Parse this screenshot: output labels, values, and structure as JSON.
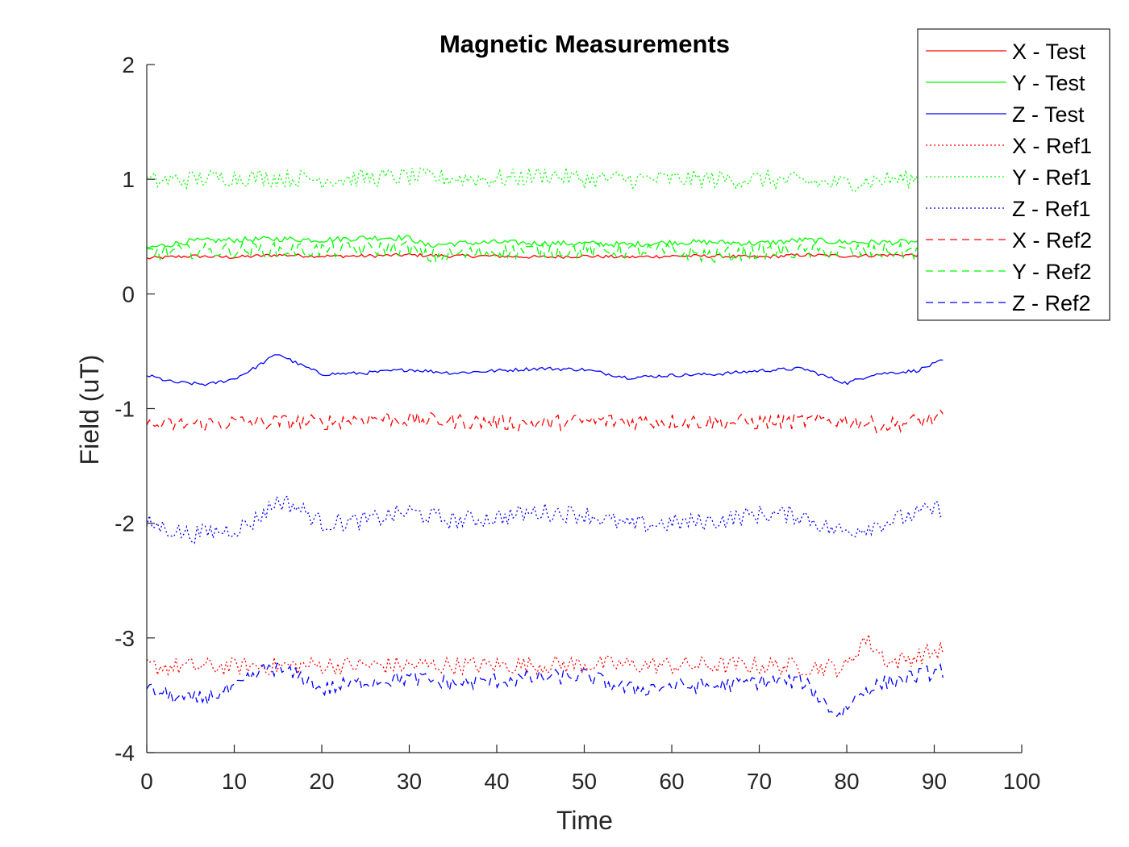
{
  "chart_data": {
    "type": "line",
    "title": "Magnetic Measurements",
    "xlabel": "Time",
    "ylabel": "Field (uT)",
    "xlim": [
      0,
      100
    ],
    "ylim": [
      -4,
      2
    ],
    "xticks": [
      0,
      10,
      20,
      30,
      40,
      50,
      60,
      70,
      80,
      90,
      100
    ],
    "yticks": [
      -4,
      -3,
      -2,
      -1,
      0,
      1,
      2
    ],
    "grid": false,
    "legend_position": "top-right",
    "x_range": [
      0,
      91
    ],
    "series": [
      {
        "name": "X - Test",
        "color": "#ff0000",
        "style": "solid",
        "x": [
          0,
          5,
          10,
          15,
          20,
          25,
          30,
          35,
          40,
          45,
          50,
          55,
          60,
          65,
          70,
          75,
          80,
          85,
          91
        ],
        "y": [
          0.31,
          0.33,
          0.32,
          0.34,
          0.33,
          0.33,
          0.34,
          0.33,
          0.33,
          0.32,
          0.33,
          0.32,
          0.33,
          0.33,
          0.32,
          0.34,
          0.33,
          0.34,
          0.34
        ]
      },
      {
        "name": "Y - Test",
        "color": "#00ff00",
        "style": "solid",
        "x": [
          0,
          5,
          10,
          15,
          20,
          25,
          30,
          32,
          35,
          40,
          45,
          50,
          55,
          60,
          65,
          70,
          75,
          80,
          85,
          91
        ],
        "y": [
          0.4,
          0.46,
          0.47,
          0.48,
          0.47,
          0.49,
          0.49,
          0.42,
          0.44,
          0.45,
          0.44,
          0.44,
          0.43,
          0.45,
          0.45,
          0.44,
          0.47,
          0.45,
          0.45,
          0.46
        ]
      },
      {
        "name": "Z - Test",
        "color": "#0000ff",
        "style": "solid",
        "x": [
          0,
          3,
          7,
          10,
          12,
          15,
          17,
          20,
          25,
          30,
          35,
          40,
          45,
          50,
          55,
          60,
          65,
          70,
          75,
          78,
          80,
          83,
          88,
          91
        ],
        "y": [
          -0.71,
          -0.77,
          -0.79,
          -0.74,
          -0.66,
          -0.52,
          -0.6,
          -0.7,
          -0.69,
          -0.66,
          -0.69,
          -0.67,
          -0.65,
          -0.66,
          -0.73,
          -0.71,
          -0.7,
          -0.67,
          -0.65,
          -0.73,
          -0.78,
          -0.7,
          -0.67,
          -0.58
        ]
      },
      {
        "name": "X - Ref1",
        "color": "#ff0000",
        "style": "dotted",
        "x": [
          0,
          10,
          20,
          30,
          40,
          50,
          60,
          70,
          80,
          82,
          85,
          91
        ],
        "y": [
          -3.25,
          -3.25,
          -3.24,
          -3.24,
          -3.24,
          -3.23,
          -3.24,
          -3.24,
          -3.26,
          -3.0,
          -3.22,
          -3.1
        ]
      },
      {
        "name": "Y - Ref1",
        "color": "#00ff00",
        "style": "dotted",
        "x": [
          0,
          10,
          20,
          30,
          40,
          46,
          50,
          60,
          70,
          79,
          85,
          91
        ],
        "y": [
          0.98,
          1.02,
          1.0,
          1.02,
          1.0,
          1.04,
          1.0,
          1.0,
          1.0,
          0.96,
          1.0,
          1.0
        ]
      },
      {
        "name": "Z - Ref1",
        "color": "#0000ff",
        "style": "dotted",
        "x": [
          0,
          5,
          10,
          12,
          15,
          17,
          20,
          25,
          30,
          35,
          40,
          45,
          50,
          55,
          60,
          65,
          70,
          75,
          78,
          80,
          85,
          91
        ],
        "y": [
          -2.0,
          -2.1,
          -2.05,
          -2.0,
          -1.8,
          -1.85,
          -2.0,
          -1.98,
          -1.9,
          -1.98,
          -1.95,
          -1.9,
          -1.92,
          -2.02,
          -2.0,
          -1.98,
          -1.92,
          -1.93,
          -2.05,
          -2.07,
          -1.98,
          -1.86
        ]
      },
      {
        "name": "X - Ref2",
        "color": "#ff0000",
        "style": "dashed",
        "x": [
          0,
          10,
          20,
          26,
          30,
          40,
          45,
          50,
          60,
          70,
          80,
          84,
          91
        ],
        "y": [
          -1.15,
          -1.12,
          -1.12,
          -1.08,
          -1.1,
          -1.12,
          -1.13,
          -1.11,
          -1.11,
          -1.12,
          -1.1,
          -1.15,
          -1.08
        ]
      },
      {
        "name": "Y - Ref2",
        "color": "#00ff00",
        "style": "dashed",
        "x": [
          0,
          10,
          20,
          30,
          32,
          40,
          50,
          60,
          65,
          70,
          80,
          91
        ],
        "y": [
          0.36,
          0.38,
          0.38,
          0.4,
          0.32,
          0.37,
          0.38,
          0.37,
          0.33,
          0.37,
          0.37,
          0.37
        ]
      },
      {
        "name": "Z - Ref2",
        "color": "#0000ff",
        "style": "dashed",
        "x": [
          0,
          5,
          10,
          14,
          18,
          20,
          25,
          30,
          35,
          40,
          45,
          50,
          55,
          60,
          65,
          70,
          75,
          79,
          82,
          85,
          91
        ],
        "y": [
          -3.45,
          -3.55,
          -3.45,
          -3.25,
          -3.35,
          -3.45,
          -3.38,
          -3.35,
          -3.4,
          -3.37,
          -3.35,
          -3.33,
          -3.45,
          -3.42,
          -3.42,
          -3.38,
          -3.38,
          -3.68,
          -3.45,
          -3.38,
          -3.28
        ]
      }
    ]
  }
}
